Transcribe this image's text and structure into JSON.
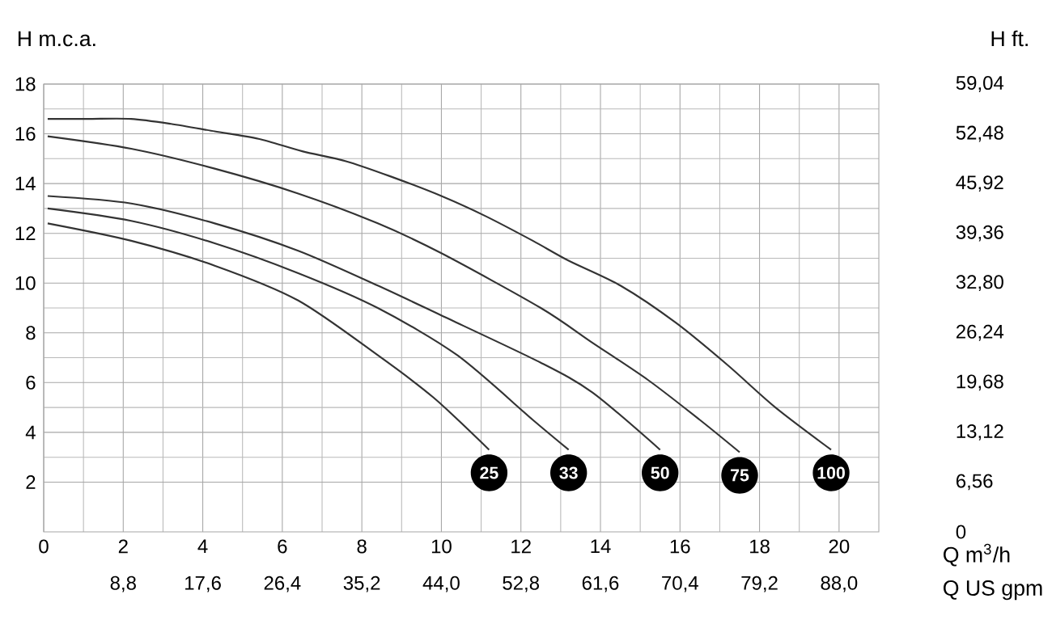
{
  "chart_data": {
    "type": "line",
    "xlabel": "Q m$^{3}$/h",
    "x2label": "Q US gpm",
    "ylabel": "H m.c.a.",
    "y2label": "H ft.",
    "xlim": [
      0,
      21
    ],
    "xticks": [
      0,
      2,
      4,
      6,
      8,
      10,
      12,
      14,
      16,
      18,
      20
    ],
    "x2lim": [
      0,
      92.4
    ],
    "x2ticks": [
      {
        "value": 8.8,
        "label": "8,8"
      },
      {
        "value": 17.6,
        "label": "17,6"
      },
      {
        "value": 26.4,
        "label": "26,4"
      },
      {
        "value": 35.2,
        "label": "35,2"
      },
      {
        "value": 44.0,
        "label": "44,0"
      },
      {
        "value": 52.8,
        "label": "52,8"
      },
      {
        "value": 61.6,
        "label": "61,6"
      },
      {
        "value": 70.4,
        "label": "70,4"
      },
      {
        "value": 79.2,
        "label": "79,2"
      },
      {
        "value": 88.0,
        "label": "88,0"
      }
    ],
    "ylim": [
      0,
      18
    ],
    "yticks": [
      2,
      4,
      6,
      8,
      10,
      12,
      14,
      16,
      18
    ],
    "y2lim": [
      0,
      59.04
    ],
    "y2ticks": [
      0,
      {
        "value": 6.56,
        "label": "6,56"
      },
      {
        "value": 13.12,
        "label": "13,12"
      },
      {
        "value": 19.68,
        "label": "19,68"
      },
      {
        "value": 26.24,
        "label": "26,24"
      },
      {
        "value": 32.8,
        "label": "32,80"
      },
      {
        "value": 39.36,
        "label": "39,36"
      },
      {
        "value": 45.92,
        "label": "45,92"
      },
      {
        "value": 52.48,
        "label": "52,48"
      },
      {
        "value": 59.04,
        "label": "59,04"
      }
    ],
    "grid": true,
    "marker": "none",
    "line_style": "solid",
    "series": [
      {
        "name": "25",
        "color": "#333333",
        "x": [
          0.1,
          2.2,
          4.3,
          6.4,
          8.4,
          9.8,
          11.2
        ],
        "values": [
          12.4,
          11.7,
          10.7,
          9.3,
          7.1,
          5.4,
          3.3
        ]
      },
      {
        "name": "33",
        "color": "#333333",
        "x": [
          0.1,
          2.2,
          4.3,
          6.4,
          8.4,
          10.4,
          12.3,
          13.2
        ],
        "values": [
          13.0,
          12.5,
          11.6,
          10.4,
          9.0,
          7.1,
          4.5,
          3.3
        ]
      },
      {
        "name": "50",
        "color": "#333333",
        "x": [
          0.1,
          2.2,
          4.3,
          6.4,
          8.4,
          10.0,
          12.5,
          13.8,
          15.5
        ],
        "values": [
          13.5,
          13.2,
          12.4,
          11.3,
          9.9,
          8.7,
          6.8,
          5.6,
          3.3
        ]
      },
      {
        "name": "75",
        "color": "#333333",
        "x": [
          0.1,
          2.2,
          4.3,
          6.4,
          8.4,
          10.0,
          12.5,
          13.8,
          15.2,
          16.5,
          17.5
        ],
        "values": [
          15.9,
          15.4,
          14.6,
          13.6,
          12.4,
          11.2,
          9.0,
          7.6,
          6.1,
          4.5,
          3.2
        ]
      },
      {
        "name": "100",
        "color": "#333333",
        "x": [
          0.1,
          1.1,
          2.2,
          3.2,
          4.3,
          5.4,
          6.5,
          7.6,
          8.7,
          10.0,
          11.1,
          12.3,
          13.2,
          14.5,
          15.9,
          17.2,
          18.4,
          19.8
        ],
        "values": [
          16.6,
          16.6,
          16.6,
          16.4,
          16.1,
          15.8,
          15.3,
          14.9,
          14.3,
          13.5,
          12.7,
          11.7,
          10.9,
          9.9,
          8.4,
          6.7,
          5.0,
          3.3
        ]
      }
    ]
  }
}
